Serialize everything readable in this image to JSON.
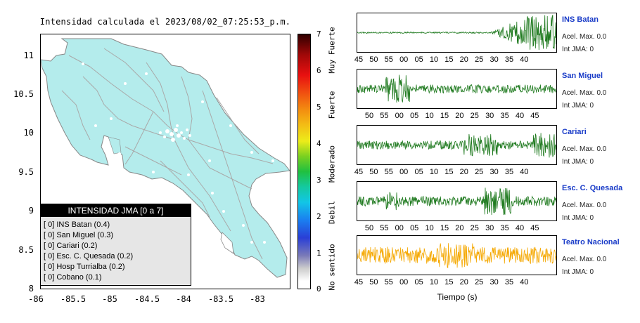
{
  "map": {
    "title": "Intensidad calculada el 2023/08/02_07:25:53_p.m.",
    "y_ticks": [
      "11",
      "10.5",
      "10",
      "9.5",
      "9",
      "8.5",
      "8"
    ],
    "x_ticks": [
      "-86",
      "-85.5",
      "-85",
      "-84.5",
      "-84",
      "-83.5",
      "-83"
    ],
    "land_color": "#b4ecec",
    "road_color": "#a9a9a9"
  },
  "legend": {
    "title": "INTENSIDAD JMA [0 a 7]",
    "rows": [
      "[ 0] INS Batan (0.4)",
      "[ 0] San Miguel (0.3)",
      "[ 0] Cariari (0.2)",
      "[ 0] Esc. C. Quesada (0.2)",
      "[ 0] Hosp Turrialba (0.2)",
      "[ 0] Cobano (0.1)"
    ]
  },
  "colorbar": {
    "ticks": [
      "7",
      "6",
      "5",
      "4",
      "3",
      "2",
      "1",
      "0"
    ],
    "labels": [
      "Muy Fuerte",
      "Fuerte",
      "Moderado",
      "Debil",
      "No sentido"
    ]
  },
  "traces": [
    {
      "name": "INS Batan",
      "accel": "Acel. Max. 0.0",
      "intensity": "Int JMA: 0",
      "color": "#1f7a1f",
      "ticks": [
        "45",
        "50",
        "55",
        "00",
        "05",
        "10",
        "15",
        "20",
        "25",
        "30",
        "35",
        "40"
      ]
    },
    {
      "name": "San Miguel",
      "accel": "Acel. Max. 0.0",
      "intensity": "Int JMA: 0",
      "color": "#1f7a1f",
      "ticks": [
        "50",
        "55",
        "00",
        "05",
        "10",
        "15",
        "20",
        "25",
        "30",
        "35",
        "40",
        "45"
      ]
    },
    {
      "name": "Cariari",
      "accel": "Acel. Max. 0.0",
      "intensity": "Int JMA: 0",
      "color": "#1f7a1f",
      "ticks": [
        "45",
        "50",
        "55",
        "00",
        "05",
        "10",
        "15",
        "20",
        "25",
        "30",
        "35",
        "40"
      ]
    },
    {
      "name": "Esc. C. Quesada",
      "accel": "Acel. Max. 0.0",
      "intensity": "Int JMA: 0",
      "color": "#1f7a1f",
      "ticks": [
        "50",
        "55",
        "00",
        "05",
        "10",
        "15",
        "20",
        "25",
        "30",
        "35",
        "40",
        "45"
      ]
    },
    {
      "name": "Teatro Nacional",
      "accel": "Acel. Max. 0.0",
      "intensity": "Int JMA: 0",
      "color": "#f5a800",
      "ticks": [
        "45",
        "50",
        "55",
        "00",
        "05",
        "10",
        "15",
        "20",
        "25",
        "30",
        "35",
        "40"
      ]
    }
  ],
  "x_axis_label": "Tiempo (s)"
}
